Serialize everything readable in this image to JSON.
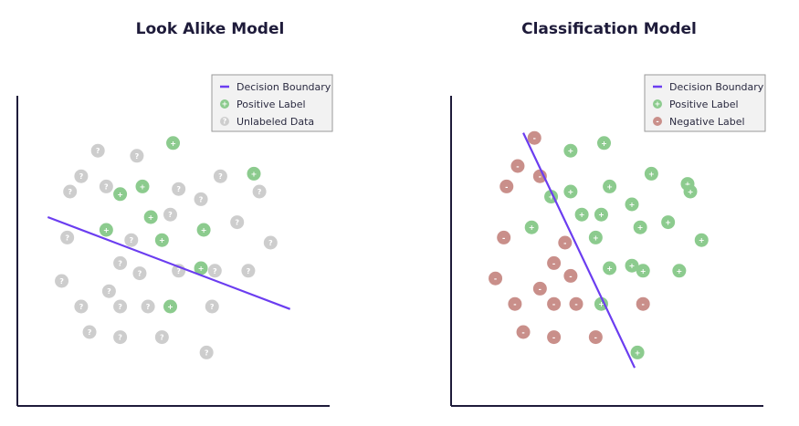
{
  "colors": {
    "boundary": "#6b3df0",
    "positive": "#8ccb8e",
    "unlabeled": "#cdcdcd",
    "negative": "#c98f8a",
    "axis": "#1e1b3a",
    "legend_bg": "#f2f2f2",
    "legend_border": "#9a9a9a"
  },
  "chart_data": [
    {
      "type": "scatter",
      "title": "Look Alike Model",
      "xlabel": "",
      "ylabel": "",
      "xlim": [
        0,
        100
      ],
      "ylim": [
        0,
        100
      ],
      "grid": false,
      "legend_position": "top-right",
      "legend": [
        {
          "label": "Decision Boundary",
          "kind": "line"
        },
        {
          "label": "Positive Label",
          "kind": "positive"
        },
        {
          "label": "Unlabeled Data",
          "kind": "unlabeled"
        }
      ],
      "boundary": [
        [
          6,
          65
        ],
        [
          93,
          29
        ]
      ],
      "series": [
        {
          "kind": "positive",
          "symbol": "+",
          "points": [
            [
              51,
              94
            ],
            [
              80,
              82
            ],
            [
              32,
              74
            ],
            [
              40,
              77
            ],
            [
              43,
              65
            ],
            [
              27,
              60
            ],
            [
              47,
              56
            ],
            [
              62,
              60
            ],
            [
              61,
              45
            ],
            [
              50,
              30
            ]
          ]
        },
        {
          "kind": "unlabeled",
          "symbol": "?",
          "points": [
            [
              24,
              91
            ],
            [
              38,
              89
            ],
            [
              18,
              81
            ],
            [
              27,
              77
            ],
            [
              68,
              81
            ],
            [
              53,
              76
            ],
            [
              14,
              75
            ],
            [
              82,
              75
            ],
            [
              61,
              72
            ],
            [
              50,
              66
            ],
            [
              74,
              63
            ],
            [
              13,
              57
            ],
            [
              36,
              56
            ],
            [
              86,
              55
            ],
            [
              32,
              47
            ],
            [
              53,
              44
            ],
            [
              66,
              44
            ],
            [
              78,
              44
            ],
            [
              11,
              40
            ],
            [
              39,
              43
            ],
            [
              28,
              36
            ],
            [
              18,
              30
            ],
            [
              32,
              30
            ],
            [
              42,
              30
            ],
            [
              65,
              30
            ],
            [
              21,
              20
            ],
            [
              32,
              18
            ],
            [
              47,
              18
            ],
            [
              63,
              12
            ]
          ]
        }
      ]
    },
    {
      "type": "scatter",
      "title": "Classification Model",
      "xlabel": "",
      "ylabel": "",
      "xlim": [
        0,
        100
      ],
      "ylim": [
        0,
        100
      ],
      "grid": false,
      "legend_position": "top-right",
      "legend": [
        {
          "label": "Decision Boundary",
          "kind": "line"
        },
        {
          "label": "Positive Label",
          "kind": "positive"
        },
        {
          "label": "Negative Label",
          "kind": "negative"
        }
      ],
      "boundary": [
        [
          21,
          98
        ],
        [
          61,
          6
        ]
      ],
      "series": [
        {
          "kind": "positive",
          "symbol": "+",
          "points": [
            [
              38,
              91
            ],
            [
              50,
              94
            ],
            [
              67,
              82
            ],
            [
              80,
              78
            ],
            [
              81,
              75
            ],
            [
              52,
              77
            ],
            [
              38,
              75
            ],
            [
              31,
              73
            ],
            [
              60,
              70
            ],
            [
              42,
              66
            ],
            [
              49,
              66
            ],
            [
              63,
              61
            ],
            [
              73,
              63
            ],
            [
              24,
              61
            ],
            [
              47,
              57
            ],
            [
              85,
              56
            ],
            [
              52,
              45
            ],
            [
              60,
              46
            ],
            [
              64,
              44
            ],
            [
              77,
              44
            ],
            [
              49,
              31
            ],
            [
              62,
              12
            ]
          ]
        },
        {
          "kind": "negative",
          "symbol": "-",
          "points": [
            [
              25,
              96
            ],
            [
              19,
              85
            ],
            [
              27,
              81
            ],
            [
              15,
              77
            ],
            [
              14,
              57
            ],
            [
              36,
              55
            ],
            [
              32,
              47
            ],
            [
              38,
              42
            ],
            [
              11,
              41
            ],
            [
              27,
              37
            ],
            [
              18,
              31
            ],
            [
              32,
              31
            ],
            [
              40,
              31
            ],
            [
              64,
              31
            ],
            [
              21,
              20
            ],
            [
              32,
              18
            ],
            [
              47,
              18
            ]
          ]
        }
      ]
    }
  ]
}
